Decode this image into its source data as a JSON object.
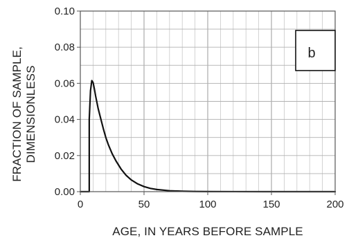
{
  "chart_data": {
    "type": "line",
    "title": "",
    "xlabel": "AGE, IN YEARS BEFORE SAMPLE",
    "ylabel_lines": [
      "FRACTION OF SAMPLE,",
      "DIMENSIONLESS"
    ],
    "panel_label": "b",
    "xlim": [
      0,
      200
    ],
    "ylim": [
      0,
      0.1
    ],
    "x_ticks": [
      {
        "value": 0,
        "label": "0"
      },
      {
        "value": 50,
        "label": "50"
      },
      {
        "value": 100,
        "label": "100"
      },
      {
        "value": 150,
        "label": "150"
      },
      {
        "value": 200,
        "label": "200"
      }
    ],
    "y_ticks": [
      {
        "value": 0,
        "label": "0.00"
      },
      {
        "value": 0.02,
        "label": "0.02"
      },
      {
        "value": 0.04,
        "label": "0.04"
      },
      {
        "value": 0.06,
        "label": "0.06"
      },
      {
        "value": 0.08,
        "label": "0.08"
      },
      {
        "value": 0.1,
        "label": "0.10"
      }
    ],
    "x_minor_grid_step": 10,
    "y_minor_grid_step": 0.01,
    "grid": true,
    "series": [
      {
        "color": "#111111",
        "x": [
          0,
          7,
          7,
          8,
          9,
          10,
          11,
          12,
          14,
          16,
          18,
          20,
          22,
          25,
          28,
          32,
          36,
          40,
          45,
          50,
          55,
          60,
          70,
          80,
          90,
          100,
          120,
          150,
          200
        ],
        "y": [
          0,
          0,
          0.04,
          0.056,
          0.0615,
          0.0605,
          0.057,
          0.053,
          0.046,
          0.0405,
          0.035,
          0.03,
          0.026,
          0.021,
          0.017,
          0.0125,
          0.009,
          0.0065,
          0.0043,
          0.0028,
          0.0018,
          0.0012,
          0.0005,
          0.00025,
          0.0001,
          5e-05,
          2e-05,
          1e-05,
          0
        ]
      }
    ]
  }
}
